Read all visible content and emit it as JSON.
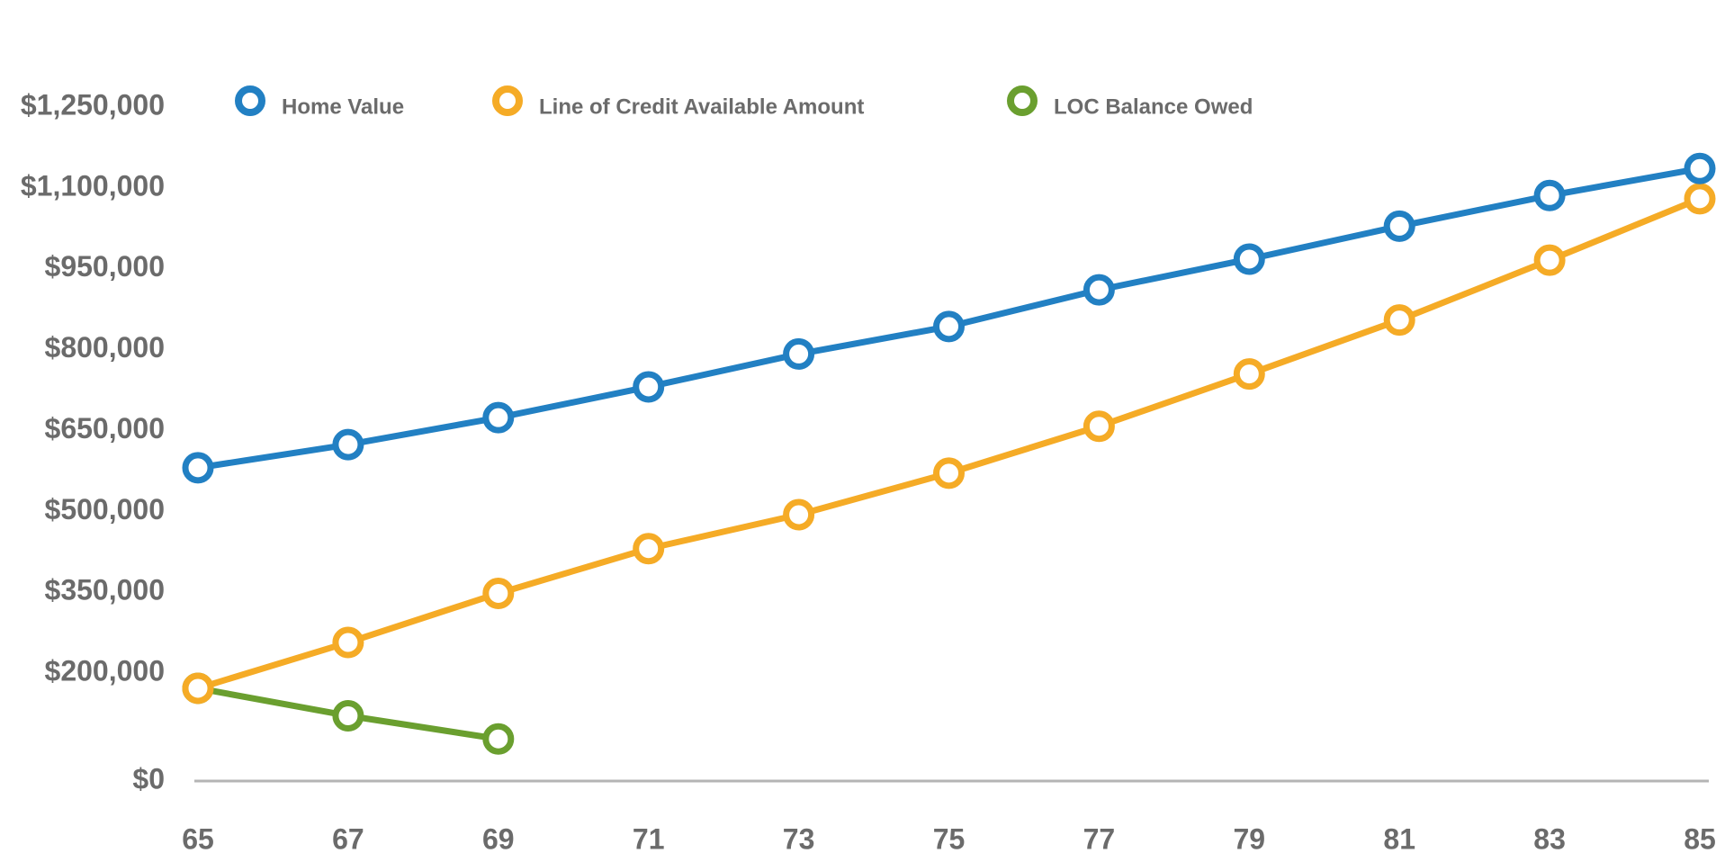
{
  "chart_data": {
    "type": "line",
    "x": [
      65,
      67,
      69,
      71,
      73,
      75,
      77,
      79,
      81,
      83,
      85
    ],
    "xlim": [
      65,
      85
    ],
    "xticks": [
      65,
      67,
      69,
      71,
      73,
      75,
      77,
      79,
      81,
      83,
      85
    ],
    "ylim": [
      0,
      1250000
    ],
    "yticks": [
      {
        "value": 0,
        "label": "$0"
      },
      {
        "value": 200000,
        "label": "$200,000"
      },
      {
        "value": 350000,
        "label": "$350,000"
      },
      {
        "value": 500000,
        "label": "$500,000"
      },
      {
        "value": 650000,
        "label": "$650,000"
      },
      {
        "value": 800000,
        "label": "$800,000"
      },
      {
        "value": 950000,
        "label": "$950,000"
      },
      {
        "value": 1100000,
        "label": "$1,100,000"
      },
      {
        "value": 1250000,
        "label": "$1,250,000"
      }
    ],
    "grid": false,
    "legend": "top",
    "series": [
      {
        "name": "Home Value",
        "color": "#2280c3",
        "values": [
          581000,
          624000,
          674000,
          731000,
          792000,
          843000,
          911000,
          968000,
          1029000,
          1086000,
          1136000
        ]
      },
      {
        "name": "Line of Credit Available Amount",
        "color": "#f5ab26",
        "values": [
          172000,
          257000,
          348000,
          431000,
          494000,
          571000,
          658000,
          755000,
          855000,
          966000,
          1080000
        ]
      },
      {
        "name": "LOC Balance Owed",
        "color": "#6a9f2f",
        "values": [
          172000,
          121000,
          78000,
          null,
          null,
          null,
          null,
          null,
          null,
          null,
          null
        ]
      }
    ]
  }
}
